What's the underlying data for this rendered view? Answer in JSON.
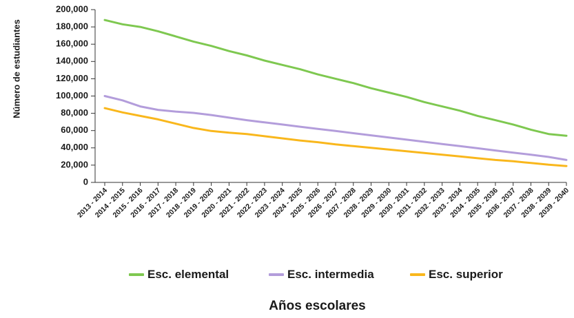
{
  "chart_data": {
    "type": "line",
    "xlabel": "Años escolares",
    "ylabel": "Número de estudiantes",
    "ylim": [
      0,
      200000
    ],
    "yticks": [
      "0",
      "20,000",
      "40,000",
      "60,000",
      "80,000",
      "100,000",
      "120,000",
      "140,000",
      "160,000",
      "180,000",
      "200,000"
    ],
    "ytick_values": [
      0,
      20000,
      40000,
      60000,
      80000,
      100000,
      120000,
      140000,
      160000,
      180000,
      200000
    ],
    "categories": [
      "2013 - 2014",
      "2014 - 2015",
      "2015 - 2016",
      "2016 - 2017",
      "2017 - 2018",
      "2018 - 2019",
      "2019 - 2020",
      "2020 - 2021",
      "2021 - 2022",
      "2022 - 2023",
      "2023 - 2024",
      "2024 - 2025",
      "2025 - 2026",
      "2026 - 2027",
      "2027 - 2028",
      "2028 - 2029",
      "2029 - 2030",
      "2030 - 2031",
      "2031 - 2032",
      "2032 - 2033",
      "2033 - 2034",
      "2034 - 2035",
      "2035 - 2036",
      "2036 - 2037",
      "2037 - 2038",
      "2038 - 2039",
      "2039 - 2040"
    ],
    "series": [
      {
        "name": "Esc. elemental",
        "color": "#7ec850",
        "values": [
          188000,
          183000,
          180000,
          175000,
          169000,
          163000,
          158000,
          152000,
          147000,
          141000,
          136000,
          131000,
          125000,
          120000,
          115000,
          109000,
          104000,
          99000,
          93000,
          88000,
          83000,
          77000,
          72000,
          67000,
          61000,
          56000,
          54000
        ]
      },
      {
        "name": "Esc. intermedia",
        "color": "#b39ddb",
        "values": [
          100000,
          95000,
          88000,
          84000,
          82000,
          80500,
          78000,
          75000,
          72000,
          69500,
          67000,
          64500,
          62000,
          59500,
          57000,
          54500,
          52000,
          49500,
          47000,
          44500,
          42000,
          39500,
          37000,
          34500,
          32000,
          29500,
          26000
        ]
      },
      {
        "name": "Esc. superior",
        "color": "#f9b71c",
        "values": [
          86000,
          81000,
          77000,
          73000,
          68000,
          63000,
          59500,
          57500,
          56000,
          53500,
          51000,
          48500,
          46500,
          44000,
          42000,
          40000,
          38000,
          36000,
          34000,
          32000,
          30000,
          28000,
          26000,
          24500,
          22500,
          20500,
          19000
        ]
      }
    ],
    "grid": false,
    "legend_position": "bottom"
  }
}
